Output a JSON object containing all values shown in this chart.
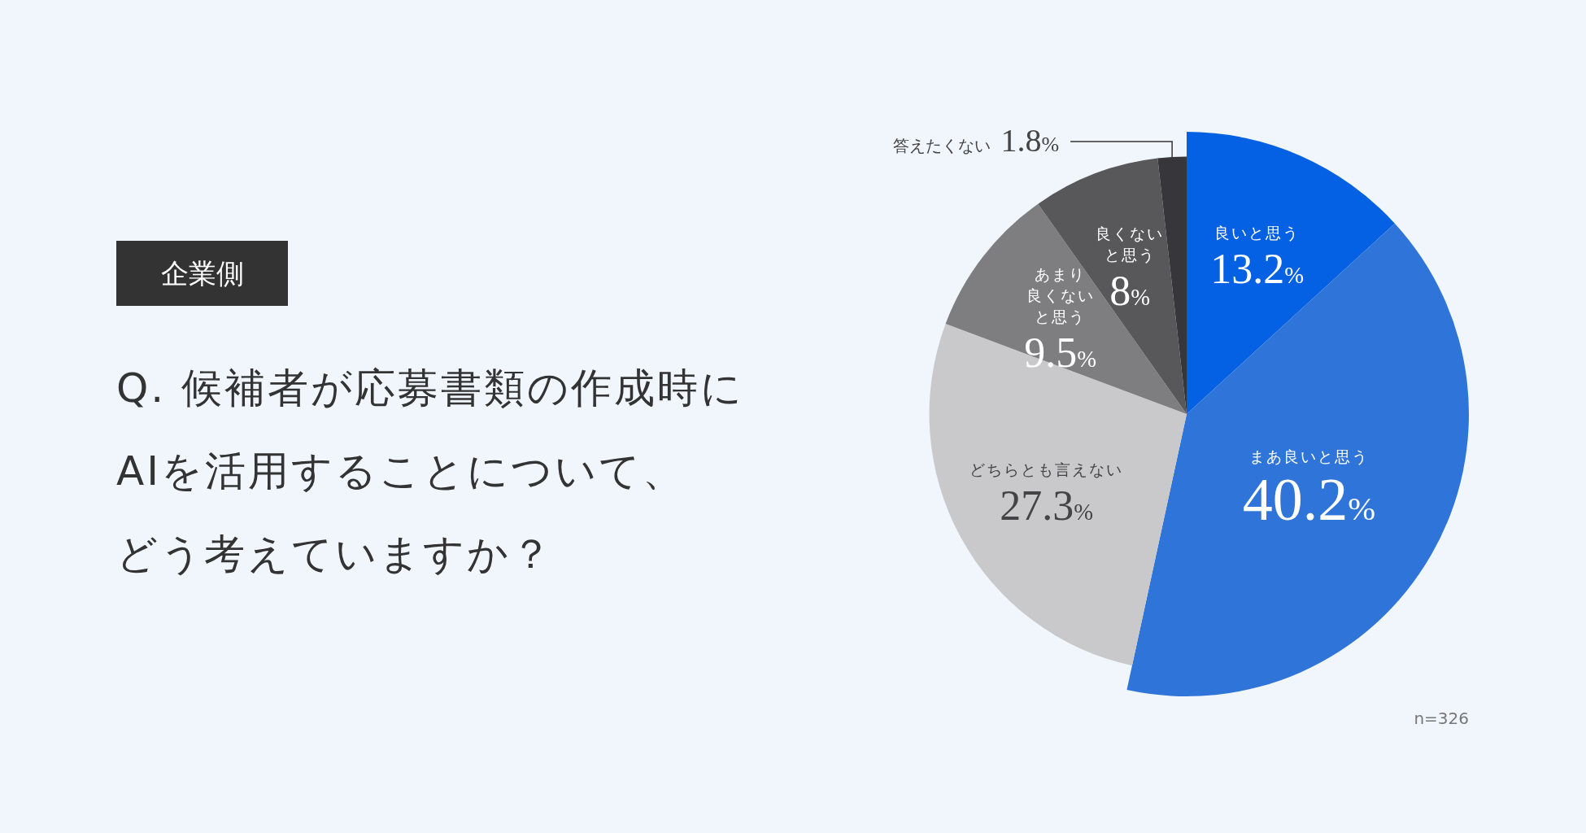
{
  "chart_data": {
    "type": "pie",
    "subtitle": "企業側",
    "title": "Q. 候補者が応募書類の作成時にAIを活用することについて、どう考えていますか？",
    "categories": [
      "良いと思う",
      "まあ良いと思う",
      "どちらとも言えない",
      "あまり良くないと思う",
      "良くないと思う",
      "答えたくない"
    ],
    "values": [
      13.2,
      40.2,
      27.3,
      9.5,
      8,
      1.8
    ],
    "value_labels": [
      "13.2%",
      "40.2%",
      "27.3%",
      "9.5%",
      "8%",
      "1.8%"
    ],
    "colors": [
      "#0561e3",
      "#2f74d8",
      "#c9c9cb",
      "#7e7e80",
      "#58585a",
      "#37373b"
    ],
    "annotations": [
      "n=326"
    ]
  }
}
